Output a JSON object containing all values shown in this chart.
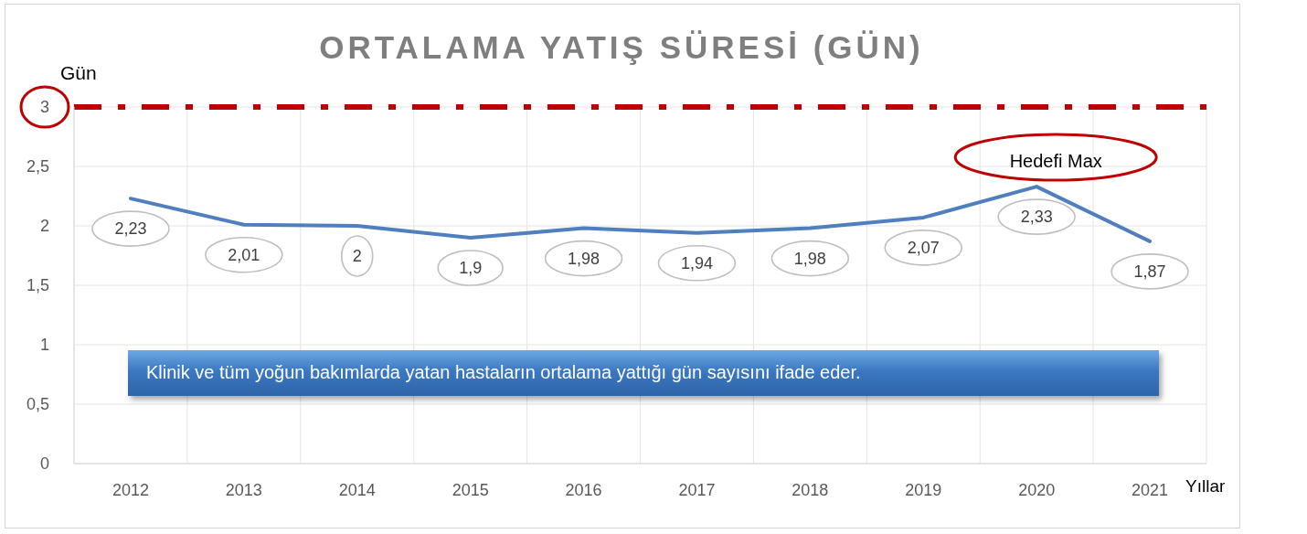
{
  "chart_data": {
    "type": "line",
    "title": "ORTALAMA YATIŞ SÜRESİ (GÜN)",
    "xlabel": "Yıllar",
    "ylabel": "Gün",
    "categories": [
      "2012",
      "2013",
      "2014",
      "2015",
      "2016",
      "2017",
      "2018",
      "2019",
      "2020",
      "2021"
    ],
    "series": [
      {
        "color": "#4f7fbf",
        "values": [
          2.23,
          2.01,
          2,
          1.9,
          1.98,
          1.94,
          1.98,
          2.07,
          2.33,
          1.87
        ],
        "value_labels": [
          "2,23",
          "2,01",
          "2",
          "1,9",
          "1,98",
          "1,94",
          "1,98",
          "2,07",
          "2,33",
          "1,87"
        ]
      }
    ],
    "ylim": [
      0,
      3
    ],
    "yticks": [
      0,
      {
        "value": 0.5,
        "label": "0,5"
      },
      1,
      {
        "value": 1.5,
        "label": "1,5"
      },
      2,
      {
        "value": 2.5,
        "label": "2,5"
      },
      3
    ],
    "grid": true,
    "ref_lines": [
      {
        "axis": "y",
        "value": 3,
        "label": "Hedefi Max",
        "color": "#c00000",
        "line_style": "dashed"
      }
    ],
    "annotations": [
      "Klinik ve tüm yoğun bakımlarda yatan hastaların ortalama yattığı gün sayısını ifade eder."
    ]
  }
}
